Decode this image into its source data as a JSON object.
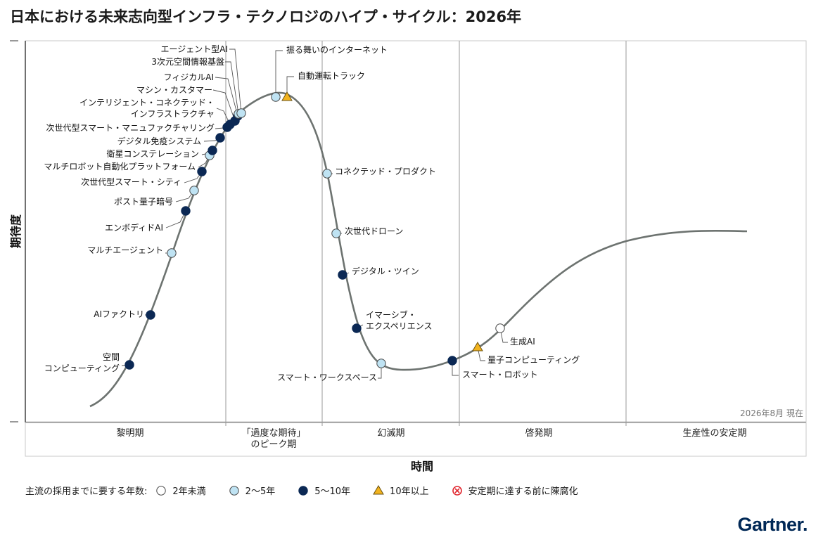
{
  "title": "日本における未来志向型インフラ・テクノロジのハイプ・サイクル：2026年",
  "date_note": "2026年8月 現在",
  "brand": "Gartner.",
  "colors": {
    "less_than_2": "#ffffff",
    "two_to_five": "#bfe3f3",
    "five_to_ten": "#0b2854",
    "more_than_10": "#f2b31e",
    "obsolete": "#e0262e",
    "curve": "#6d7370",
    "divider": "#9a9a9a"
  },
  "legend": {
    "title": "主流の採用までに要する年数:",
    "items": [
      {
        "key": "less_than_2",
        "label": "2年未満",
        "shape": "circle"
      },
      {
        "key": "two_to_five",
        "label": "2〜5年",
        "shape": "circle"
      },
      {
        "key": "five_to_ten",
        "label": "5〜10年",
        "shape": "circle"
      },
      {
        "key": "more_than_10",
        "label": "10年以上",
        "shape": "triangle"
      },
      {
        "key": "obsolete",
        "label": "安定期に達する前に陳腐化",
        "shape": "x-circle"
      }
    ]
  },
  "chart_data": {
    "type": "scatter",
    "title": "日本における未来志向型インフラ・テクノロジのハイプ・サイクル：2026年",
    "xlabel": "時間",
    "ylabel": "期待度",
    "phases": [
      "黎明期",
      "「過度な期待」\nのピーク期",
      "幻滅期",
      "啓発期",
      "生産性の安定期"
    ],
    "points": [
      {
        "name": "空間\nコンピューティング",
        "category": "five_to_ten"
      },
      {
        "name": "AIファクトリ",
        "category": "five_to_ten"
      },
      {
        "name": "マルチエージェント",
        "category": "two_to_five"
      },
      {
        "name": "エンボディドAI",
        "category": "five_to_ten"
      },
      {
        "name": "ポスト量子暗号",
        "category": "two_to_five"
      },
      {
        "name": "次世代型スマート・シティ",
        "category": "five_to_ten"
      },
      {
        "name": "マルチロボット自動化プラットフォーム",
        "category": "two_to_five"
      },
      {
        "name": "衛星コンステレーション",
        "category": "five_to_ten"
      },
      {
        "name": "デジタル免疫システム",
        "category": "five_to_ten"
      },
      {
        "name": "次世代型スマート・マニュファクチャリング",
        "category": "five_to_ten"
      },
      {
        "name": "インテリジェント・コネクテッド・\nインフラストラクチャ",
        "category": "five_to_ten"
      },
      {
        "name": "マシン・カスタマー",
        "category": "five_to_ten"
      },
      {
        "name": "フィジカルAI",
        "category": "five_to_ten"
      },
      {
        "name": "3次元空間情報基盤",
        "category": "two_to_five"
      },
      {
        "name": "エージェント型AI",
        "category": "two_to_five"
      },
      {
        "name": "振る舞いのインターネット",
        "category": "two_to_five"
      },
      {
        "name": "自動運転トラック",
        "category": "more_than_10"
      },
      {
        "name": "コネクテッド・プロダクト",
        "category": "two_to_five"
      },
      {
        "name": "次世代ドローン",
        "category": "two_to_five"
      },
      {
        "name": "デジタル・ツイン",
        "category": "five_to_ten"
      },
      {
        "name": "イマーシブ・\nエクスペリエンス",
        "category": "five_to_ten"
      },
      {
        "name": "スマート・ワークスペース",
        "category": "two_to_five"
      },
      {
        "name": "スマート・ロボット",
        "category": "five_to_ten"
      },
      {
        "name": "量子コンピューティング",
        "category": "more_than_10"
      },
      {
        "name": "生成AI",
        "category": "less_than_2"
      }
    ]
  }
}
